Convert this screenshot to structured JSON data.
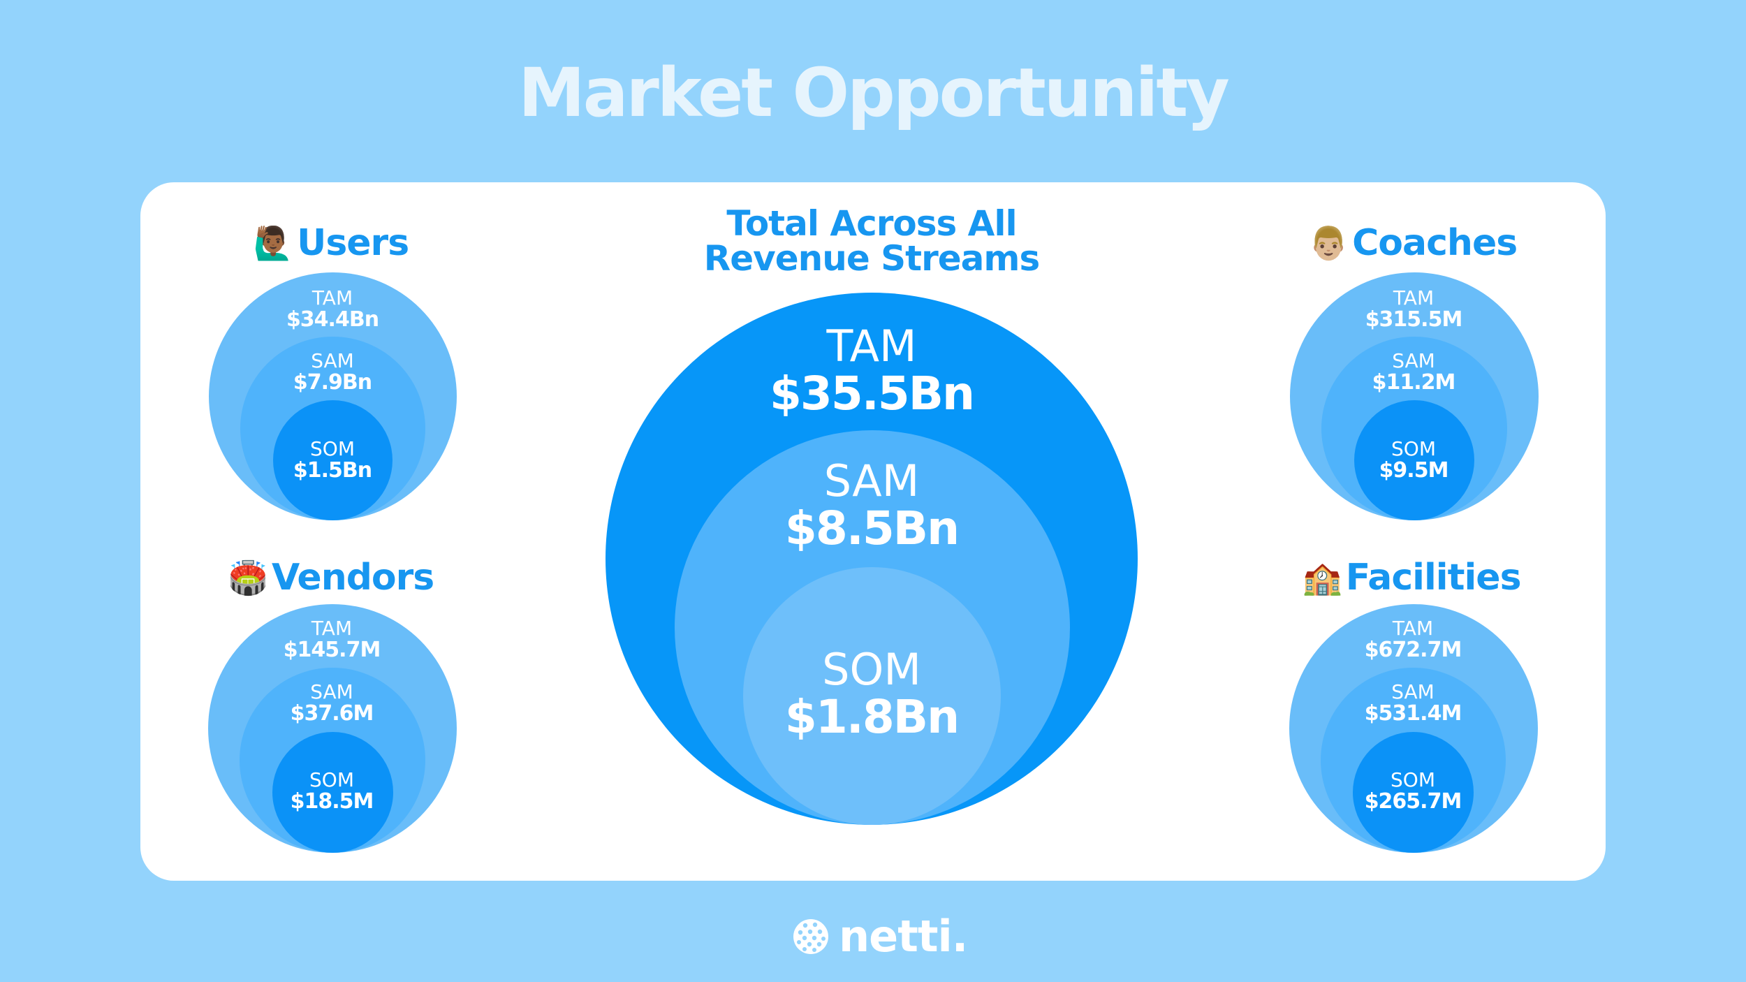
{
  "title": "Market Opportunity",
  "center": {
    "heading_line1": "Total Across All",
    "heading_line2": "Revenue Streams",
    "tam_label": "TAM",
    "tam_value": "$35.5Bn",
    "sam_label": "SAM",
    "sam_value": "$8.5Bn",
    "som_label": "SOM",
    "som_value": "$1.8Bn"
  },
  "segments": [
    {
      "name": "Users",
      "emoji": "🙋🏾‍♂️",
      "icon": "raising-hand-person-icon",
      "tam_label": "TAM",
      "tam_value": "$34.4Bn",
      "sam_label": "SAM",
      "sam_value": "$7.9Bn",
      "som_label": "SOM",
      "som_value": "$1.5Bn"
    },
    {
      "name": "Vendors",
      "emoji": "🏟️",
      "icon": "stadium-icon",
      "tam_label": "TAM",
      "tam_value": "$145.7M",
      "sam_label": "SAM",
      "sam_value": "$37.6M",
      "som_label": "SOM",
      "som_value": "$18.5M"
    },
    {
      "name": "Coaches",
      "emoji": "👨🏼",
      "icon": "man-face-icon",
      "tam_label": "TAM",
      "tam_value": "$315.5M",
      "sam_label": "SAM",
      "sam_value": "$11.2M",
      "som_label": "SOM",
      "som_value": "$9.5M"
    },
    {
      "name": "Facilities",
      "emoji": "🏫",
      "icon": "school-building-icon",
      "tam_label": "TAM",
      "tam_value": "$672.7M",
      "sam_label": "SAM",
      "sam_value": "$531.4M",
      "som_label": "SOM",
      "som_value": "$265.7M"
    }
  ],
  "brand": {
    "name": "netti.",
    "icon": "pickleball-icon"
  },
  "colors": {
    "background": "#93d3fc",
    "accent": "#1796f0",
    "tam_small": "#69bdf9",
    "sam": "#4fb3fb",
    "som_small": "#0b92f7",
    "tam_big": "#0796f8",
    "som_big": "#6ebffa"
  }
}
